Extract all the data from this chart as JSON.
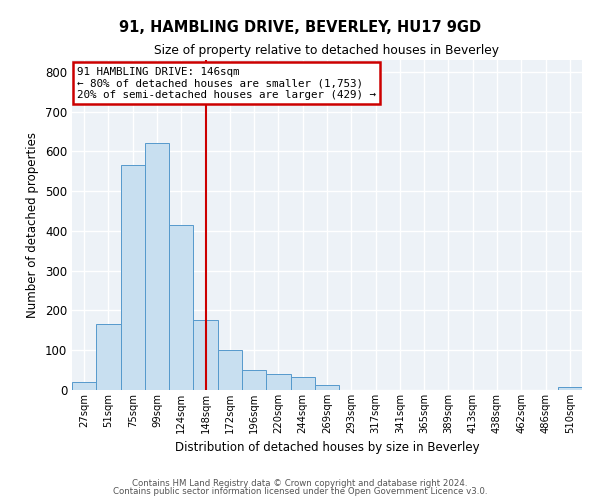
{
  "title": "91, HAMBLING DRIVE, BEVERLEY, HU17 9GD",
  "subtitle": "Size of property relative to detached houses in Beverley",
  "xlabel": "Distribution of detached houses by size in Beverley",
  "ylabel": "Number of detached properties",
  "bar_labels": [
    "27sqm",
    "51sqm",
    "75sqm",
    "99sqm",
    "124sqm",
    "148sqm",
    "172sqm",
    "196sqm",
    "220sqm",
    "244sqm",
    "269sqm",
    "293sqm",
    "317sqm",
    "341sqm",
    "365sqm",
    "389sqm",
    "413sqm",
    "438sqm",
    "462sqm",
    "486sqm",
    "510sqm"
  ],
  "bar_heights": [
    20,
    165,
    565,
    620,
    415,
    175,
    100,
    50,
    40,
    33,
    12,
    0,
    0,
    0,
    0,
    0,
    0,
    0,
    0,
    0,
    8
  ],
  "bar_color": "#c8dff0",
  "bar_edge_color": "#5599cc",
  "vline_color": "#cc0000",
  "annotation_lines": [
    "91 HAMBLING DRIVE: 146sqm",
    "← 80% of detached houses are smaller (1,753)",
    "20% of semi-detached houses are larger (429) →"
  ],
  "annotation_box_color": "#cc0000",
  "ylim": [
    0,
    830
  ],
  "yticks": [
    0,
    100,
    200,
    300,
    400,
    500,
    600,
    700,
    800
  ],
  "footer_line1": "Contains HM Land Registry data © Crown copyright and database right 2024.",
  "footer_line2": "Contains public sector information licensed under the Open Government Licence v3.0.",
  "background_color": "#edf2f7",
  "grid_color": "#ffffff"
}
